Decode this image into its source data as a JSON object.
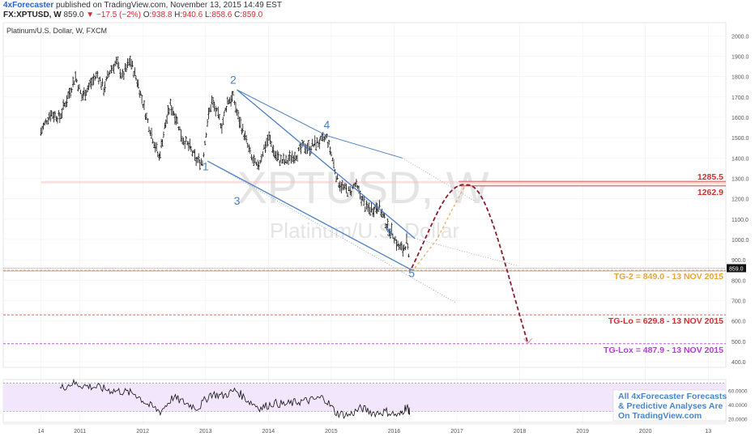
{
  "header": {
    "publisher": "4xForecaster",
    "published_text": "published on TradingView.com, November 13, 2015 14:49 EST",
    "symbol": "FX:XPTUSD",
    "interval": "W",
    "last": "859.0",
    "change_arrow": "▼",
    "change": "−17.5 (−2%)",
    "o_label": "O:",
    "open": "938.8",
    "h_label": "H:",
    "high": "940.6",
    "l_label": "L:",
    "low": "858.6",
    "c_label": "C:",
    "close": "859.0"
  },
  "chart": {
    "legend": "Platinum/U.S. Dollar, W, FXCM",
    "watermark_symbol": "XPTUSD, W",
    "watermark_name": "Platinum/U.S. Dollar",
    "price_badge": "859.0",
    "colors": {
      "wave": "#4a7fc1",
      "tg2": "#e8a33a",
      "tglo": "#d32f2f",
      "tglox": "#b03fd0",
      "projection": "#8b1c2c",
      "rsi_band": "#f1e6fb"
    },
    "wave_labels": [
      {
        "text": "1"
      },
      {
        "text": "2"
      },
      {
        "text": "3"
      },
      {
        "text": "4"
      },
      {
        "text": "5"
      },
      {
        "text": "5"
      }
    ],
    "levels": [
      {
        "text": "1285.5"
      },
      {
        "text": "1262.9"
      },
      {
        "text": "TG-2 = 849.0 - 13 NOV 2015"
      },
      {
        "text": "TG-Lo = 629.8 - 13 NOV 2015"
      },
      {
        "text": "TG-Lox = 487.9 - 13 NOV 2015"
      }
    ],
    "promo": [
      "All 4xForecaster Forecasts",
      "& Predictive Analyses Are",
      "On TradingView.com"
    ]
  },
  "chart_data": {
    "type": "bar",
    "title": "Platinum/U.S. Dollar, W, FXCM",
    "y_ticks": [
      "2000.0",
      "1900.0",
      "1800.0",
      "1700.0",
      "1600.0",
      "1500.0",
      "1400.0",
      "1300.0",
      "1200.0",
      "1100.0",
      "1000.0",
      "900.0",
      "800.0",
      "700.0",
      "600.0",
      "500.0",
      "400.0"
    ],
    "y_tick_values": [
      2000,
      1900,
      1800,
      1700,
      1600,
      1500,
      1400,
      1300,
      1200,
      1100,
      1000,
      900,
      800,
      700,
      600,
      500,
      400
    ],
    "ylim": [
      372,
      2065
    ],
    "x_ticks": [
      "14",
      "2011",
      "2012",
      "2013",
      "2014",
      "2015",
      "2016",
      "2017",
      "2018",
      "2019",
      "2020",
      "13"
    ],
    "x_tick_values": [
      2010.0,
      2010.62,
      2011.62,
      2012.62,
      2013.62,
      2014.62,
      2015.62,
      2016.62,
      2017.62,
      2018.62,
      2019.62,
      2020.62
    ],
    "xlim": [
      2009.4,
      2020.9
    ],
    "price_series": [
      [
        2010.0,
        1530
      ],
      [
        2010.15,
        1620
      ],
      [
        2010.3,
        1600
      ],
      [
        2010.45,
        1720
      ],
      [
        2010.55,
        1800
      ],
      [
        2010.65,
        1700
      ],
      [
        2010.78,
        1760
      ],
      [
        2010.9,
        1810
      ],
      [
        2011.0,
        1740
      ],
      [
        2011.1,
        1830
      ],
      [
        2011.2,
        1870
      ],
      [
        2011.3,
        1800
      ],
      [
        2011.42,
        1880
      ],
      [
        2011.55,
        1760
      ],
      [
        2011.68,
        1600
      ],
      [
        2011.8,
        1480
      ],
      [
        2011.88,
        1400
      ],
      [
        2011.97,
        1550
      ],
      [
        2012.06,
        1660
      ],
      [
        2012.15,
        1600
      ],
      [
        2012.25,
        1500
      ],
      [
        2012.37,
        1450
      ],
      [
        2012.47,
        1390
      ],
      [
        2012.57,
        1380
      ],
      [
        2012.65,
        1580
      ],
      [
        2012.72,
        1680
      ],
      [
        2012.8,
        1620
      ],
      [
        2012.88,
        1560
      ],
      [
        2012.97,
        1680
      ],
      [
        2013.06,
        1700
      ],
      [
        2013.14,
        1600
      ],
      [
        2013.25,
        1500
      ],
      [
        2013.35,
        1400
      ],
      [
        2013.45,
        1350
      ],
      [
        2013.55,
        1450
      ],
      [
        2013.63,
        1500
      ],
      [
        2013.72,
        1420
      ],
      [
        2013.8,
        1390
      ],
      [
        2013.9,
        1380
      ],
      [
        2014.0,
        1410
      ],
      [
        2014.08,
        1420
      ],
      [
        2014.18,
        1460
      ],
      [
        2014.28,
        1450
      ],
      [
        2014.36,
        1470
      ],
      [
        2014.45,
        1480
      ],
      [
        2014.55,
        1500
      ],
      [
        2014.62,
        1420
      ],
      [
        2014.72,
        1290
      ],
      [
        2014.82,
        1250
      ],
      [
        2014.92,
        1230
      ],
      [
        2015.0,
        1270
      ],
      [
        2015.08,
        1220
      ],
      [
        2015.18,
        1150
      ],
      [
        2015.28,
        1150
      ],
      [
        2015.37,
        1170
      ],
      [
        2015.45,
        1110
      ],
      [
        2015.52,
        1060
      ],
      [
        2015.6,
        1030
      ],
      [
        2015.68,
        970
      ],
      [
        2015.76,
        950
      ],
      [
        2015.82,
        990
      ],
      [
        2015.87,
        860
      ]
    ],
    "channel_upper": [
      [
        2013.12,
        1735
      ],
      [
        2015.95,
        1005
      ]
    ],
    "channel_lower": [
      [
        2012.65,
        1385
      ],
      [
        2015.9,
        850
      ]
    ],
    "channel_top_ext": [
      [
        2014.55,
        1510
      ],
      [
        2015.75,
        1400
      ]
    ],
    "channel_dotted_upper": [
      [
        2015.95,
        1005
      ],
      [
        2017.6,
        870
      ]
    ],
    "channel_dotted_lower": [
      [
        2012.65,
        1385
      ],
      [
        2016.6,
        690
      ]
    ],
    "channel_dotted_top": [
      [
        2015.75,
        1400
      ],
      [
        2016.9,
        1190
      ]
    ],
    "projection_up": [
      [
        2015.9,
        860
      ],
      [
        2016.25,
        1000
      ],
      [
        2016.55,
        1180
      ],
      [
        2016.78,
        1268
      ]
    ],
    "projection_down": [
      [
        2016.78,
        1268
      ],
      [
        2017.05,
        1200
      ],
      [
        2017.25,
        1020
      ],
      [
        2017.45,
        780
      ],
      [
        2017.62,
        590
      ],
      [
        2017.75,
        490
      ]
    ],
    "projection_orange": [
      [
        2015.95,
        860
      ],
      [
        2016.3,
        1000
      ],
      [
        2016.55,
        1150
      ],
      [
        2016.75,
        1265
      ]
    ],
    "levels": [
      {
        "name": "1285.5",
        "value": 1285.5
      },
      {
        "name": "1262.9",
        "value": 1262.9
      },
      {
        "name": "TG-2",
        "value": 849.0
      },
      {
        "name": "TG-Lo",
        "value": 629.8
      },
      {
        "name": "TG-Lox",
        "value": 487.9
      }
    ],
    "rsi_ticks": [
      "60.0000",
      "40.0000",
      "20.0000"
    ],
    "rsi_tick_values": [
      60,
      40,
      20
    ],
    "rsi_ylim": [
      15,
      75
    ],
    "rsi_band": [
      30,
      70
    ],
    "rsi_series": [
      [
        2010.3,
        62
      ],
      [
        2010.5,
        70
      ],
      [
        2010.7,
        66
      ],
      [
        2010.9,
        64
      ],
      [
        2011.1,
        60
      ],
      [
        2011.3,
        58
      ],
      [
        2011.5,
        55
      ],
      [
        2011.7,
        40
      ],
      [
        2011.9,
        30
      ],
      [
        2012.1,
        50
      ],
      [
        2012.3,
        42
      ],
      [
        2012.5,
        35
      ],
      [
        2012.7,
        55
      ],
      [
        2012.9,
        52
      ],
      [
        2013.1,
        60
      ],
      [
        2013.3,
        45
      ],
      [
        2013.5,
        35
      ],
      [
        2013.7,
        42
      ],
      [
        2013.9,
        40
      ],
      [
        2014.1,
        44
      ],
      [
        2014.3,
        46
      ],
      [
        2014.5,
        50
      ],
      [
        2014.7,
        28
      ],
      [
        2014.9,
        25
      ],
      [
        2015.1,
        35
      ],
      [
        2015.3,
        28
      ],
      [
        2015.5,
        30
      ],
      [
        2015.7,
        24
      ],
      [
        2015.82,
        38
      ],
      [
        2015.87,
        28
      ]
    ]
  }
}
